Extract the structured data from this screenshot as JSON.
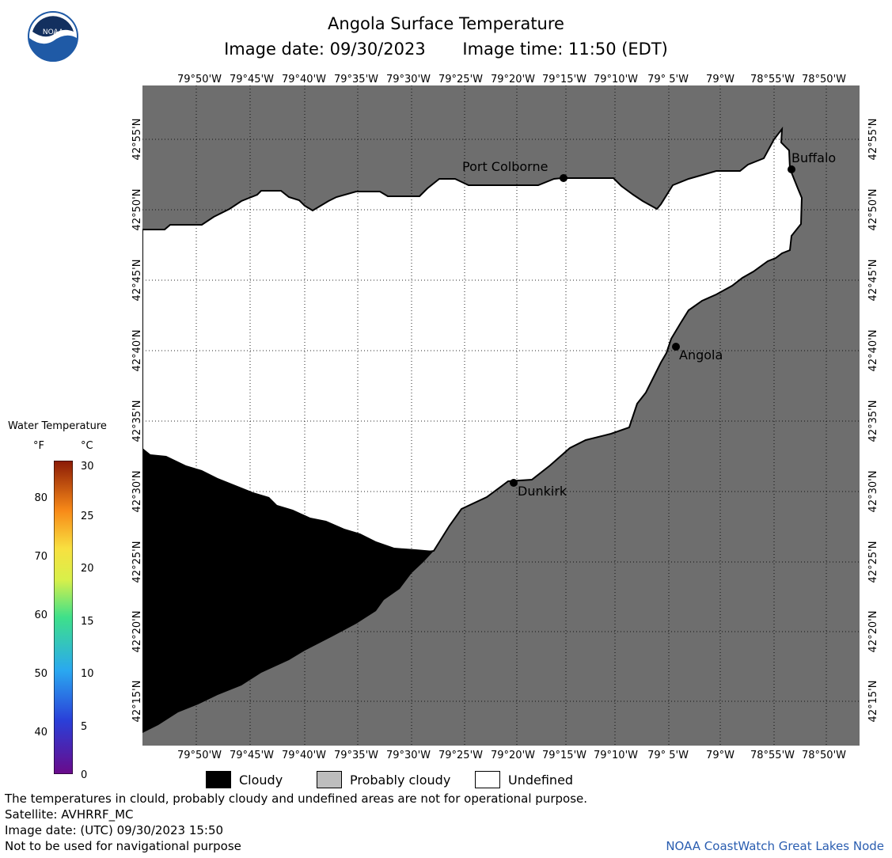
{
  "header": {
    "title": "Angola Surface Temperature",
    "image_date": "Image date: 09/30/2023",
    "image_time": "Image time: 11:50 (EDT)",
    "logo_text": "NOAA"
  },
  "map": {
    "lon_labels": [
      "79°50'W",
      "79°45'W",
      "79°40'W",
      "79°35'W",
      "79°30'W",
      "79°25'W",
      "79°20'W",
      "79°15'W",
      "79°10'W",
      "79° 5'W",
      "79°W",
      "78°55'W",
      "78°50'W"
    ],
    "lat_labels": [
      "42°55'N",
      "42°50'N",
      "42°45'N",
      "42°40'N",
      "42°35'N",
      "42°30'N",
      "42°25'N",
      "42°20'N",
      "42°15'N"
    ],
    "places": {
      "port_colborne": "Port Colborne",
      "buffalo": "Buffalo",
      "angola": "Angola",
      "dunkirk": "Dunkirk"
    },
    "colors": {
      "land": "#6e6e6e",
      "undefined": "#ffffff",
      "cloudy": "#000000",
      "probably_cloudy": "#bdbdbd"
    }
  },
  "legend": {
    "title": "Water Temperature",
    "unit_f": "°F",
    "unit_c": "°C",
    "f_ticks": [
      "40",
      "50",
      "60",
      "70",
      "80"
    ],
    "c_ticks": [
      "0",
      "5",
      "10",
      "15",
      "20",
      "25",
      "30"
    ],
    "items": {
      "cloudy": "Cloudy",
      "probably_cloudy": "Probably cloudy",
      "undefined": "Undefined"
    }
  },
  "footer": {
    "note": "The temperatures in clould, probably cloudy and undefined areas are not for operational purpose.",
    "satellite": "Satellite: AVHRRF_MC",
    "utc_date": "Image date: (UTC) 09/30/2023  15:50",
    "nav_warning": "Not to be used for navigational purpose",
    "credit": "NOAA CoastWatch Great Lakes Node"
  }
}
